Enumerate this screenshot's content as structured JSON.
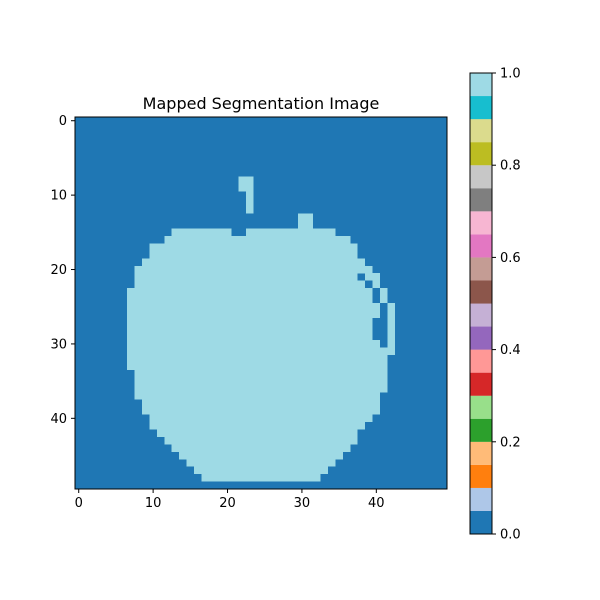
{
  "chart_data": {
    "type": "heatmap",
    "title": "Mapped Segmentation Image",
    "xlabel": "",
    "ylabel": "",
    "shape": [
      50,
      50
    ],
    "xlim": [
      -0.5,
      49.5
    ],
    "ylim": [
      49.5,
      -0.5
    ],
    "x_ticks": [
      0,
      10,
      20,
      30,
      40
    ],
    "y_ticks": [
      0,
      10,
      20,
      30,
      40
    ],
    "background_value": 0.0,
    "foreground_value": 1.0,
    "foreground_rows": [
      {
        "row": 8,
        "spans": [
          [
            22,
            23
          ]
        ]
      },
      {
        "row": 9,
        "spans": [
          [
            22,
            23
          ]
        ]
      },
      {
        "row": 10,
        "spans": [
          [
            23,
            23
          ]
        ]
      },
      {
        "row": 11,
        "spans": [
          [
            23,
            23
          ]
        ]
      },
      {
        "row": 12,
        "spans": [
          [
            23,
            23
          ]
        ]
      },
      {
        "row": 13,
        "spans": [
          [
            30,
            31
          ]
        ]
      },
      {
        "row": 14,
        "spans": [
          [
            30,
            31
          ]
        ]
      },
      {
        "row": 15,
        "spans": [
          [
            13,
            20
          ],
          [
            23,
            34
          ]
        ]
      },
      {
        "row": 16,
        "spans": [
          [
            12,
            36
          ]
        ]
      },
      {
        "row": 17,
        "spans": [
          [
            10,
            37
          ]
        ]
      },
      {
        "row": 18,
        "spans": [
          [
            10,
            37
          ]
        ]
      },
      {
        "row": 19,
        "spans": [
          [
            9,
            38
          ]
        ]
      },
      {
        "row": 20,
        "spans": [
          [
            8,
            39
          ]
        ]
      },
      {
        "row": 21,
        "spans": [
          [
            8,
            37
          ],
          [
            39,
            40
          ]
        ]
      },
      {
        "row": 22,
        "spans": [
          [
            8,
            38
          ],
          [
            40,
            40
          ]
        ]
      },
      {
        "row": 23,
        "spans": [
          [
            7,
            39
          ],
          [
            41,
            41
          ]
        ]
      },
      {
        "row": 24,
        "spans": [
          [
            7,
            39
          ],
          [
            41,
            41
          ]
        ]
      },
      {
        "row": 25,
        "spans": [
          [
            7,
            40
          ],
          [
            42,
            42
          ]
        ]
      },
      {
        "row": 26,
        "spans": [
          [
            7,
            40
          ],
          [
            42,
            42
          ]
        ]
      },
      {
        "row": 27,
        "spans": [
          [
            7,
            39
          ],
          [
            42,
            42
          ]
        ]
      },
      {
        "row": 28,
        "spans": [
          [
            7,
            39
          ],
          [
            42,
            42
          ]
        ]
      },
      {
        "row": 29,
        "spans": [
          [
            7,
            39
          ],
          [
            42,
            42
          ]
        ]
      },
      {
        "row": 30,
        "spans": [
          [
            7,
            40
          ],
          [
            42,
            42
          ]
        ]
      },
      {
        "row": 31,
        "spans": [
          [
            7,
            42
          ]
        ]
      },
      {
        "row": 32,
        "spans": [
          [
            7,
            41
          ]
        ]
      },
      {
        "row": 33,
        "spans": [
          [
            7,
            41
          ]
        ]
      },
      {
        "row": 34,
        "spans": [
          [
            8,
            41
          ]
        ]
      },
      {
        "row": 35,
        "spans": [
          [
            8,
            41
          ]
        ]
      },
      {
        "row": 36,
        "spans": [
          [
            8,
            41
          ]
        ]
      },
      {
        "row": 37,
        "spans": [
          [
            8,
            40
          ]
        ]
      },
      {
        "row": 38,
        "spans": [
          [
            9,
            40
          ]
        ]
      },
      {
        "row": 39,
        "spans": [
          [
            9,
            40
          ]
        ]
      },
      {
        "row": 40,
        "spans": [
          [
            10,
            39
          ]
        ]
      },
      {
        "row": 41,
        "spans": [
          [
            10,
            38
          ]
        ]
      },
      {
        "row": 42,
        "spans": [
          [
            11,
            37
          ]
        ]
      },
      {
        "row": 43,
        "spans": [
          [
            12,
            37
          ]
        ]
      },
      {
        "row": 44,
        "spans": [
          [
            13,
            36
          ]
        ]
      },
      {
        "row": 45,
        "spans": [
          [
            14,
            35
          ]
        ]
      },
      {
        "row": 46,
        "spans": [
          [
            15,
            34
          ]
        ]
      },
      {
        "row": 47,
        "spans": [
          [
            16,
            33
          ]
        ]
      },
      {
        "row": 48,
        "spans": [
          [
            17,
            32
          ]
        ]
      }
    ],
    "colorbar": {
      "range": [
        0.0,
        1.0
      ],
      "tick_values": [
        0.0,
        0.2,
        0.4,
        0.6,
        0.8,
        1.0
      ],
      "tick_labels": [
        "0.0",
        "0.2",
        "0.4",
        "0.6",
        "0.8",
        "1.0"
      ],
      "colors": [
        "#1f77b4",
        "#aec7e8",
        "#ff7f0e",
        "#ffbb78",
        "#2ca02c",
        "#98df8a",
        "#d62728",
        "#ff9896",
        "#9467bd",
        "#c5b0d5",
        "#8c564b",
        "#c49c94",
        "#e377c2",
        "#f7b6d2",
        "#7f7f7f",
        "#c7c7c7",
        "#bcbd22",
        "#dbdb8d",
        "#17becf",
        "#9edae5"
      ]
    }
  }
}
